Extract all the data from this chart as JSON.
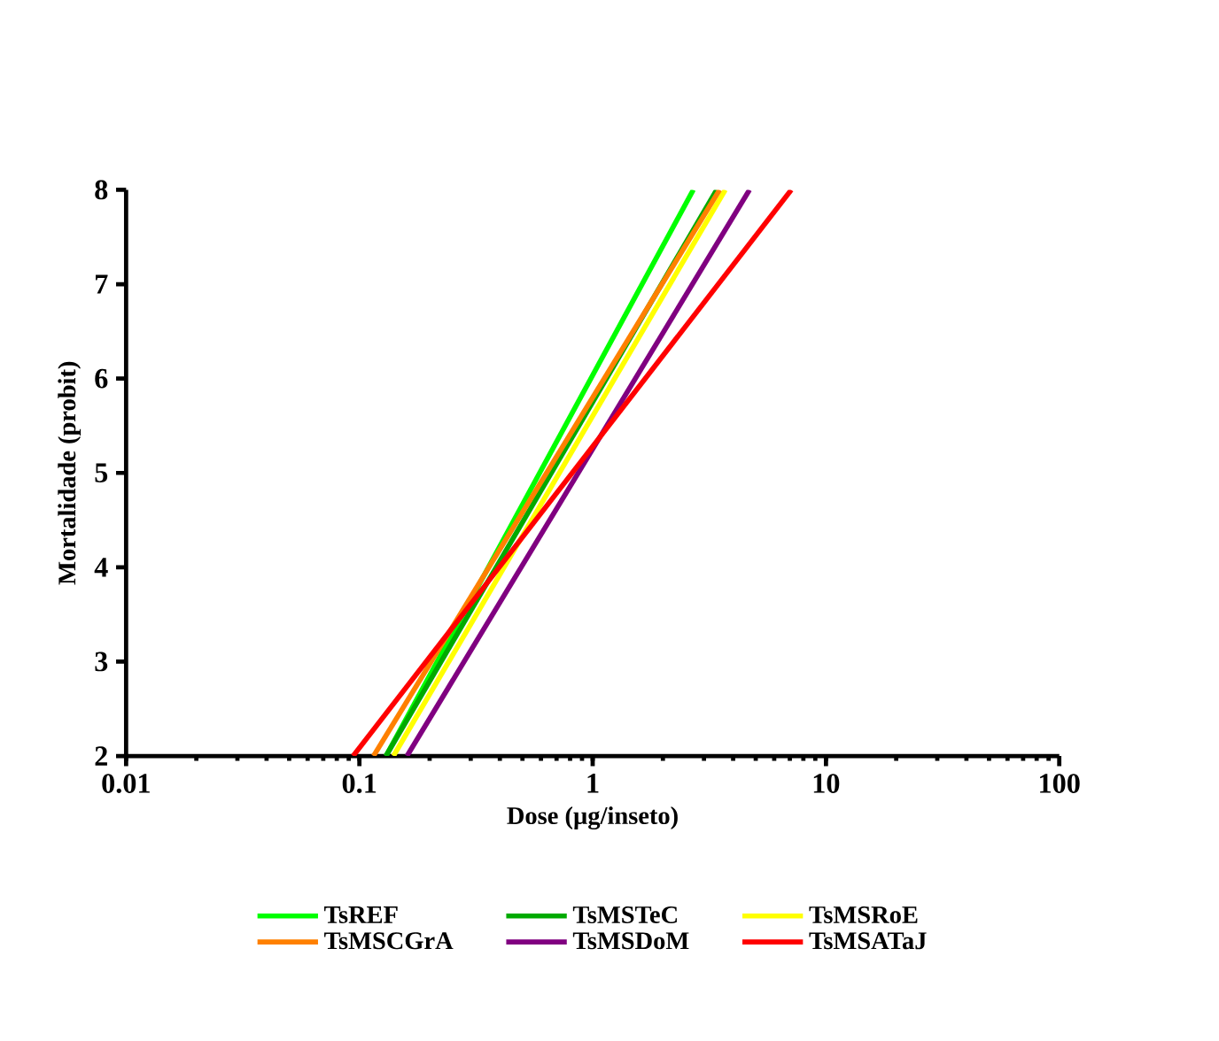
{
  "chart_data": {
    "type": "line",
    "xlabel": "Dose (µg/inseto)",
    "ylabel": "Mortalidade (probit)",
    "log": "x",
    "xlim": [
      0.01,
      100
    ],
    "ylim": [
      2,
      8
    ],
    "xticks": [
      0.01,
      0.1,
      1,
      10,
      100
    ],
    "yticks": [
      2,
      3,
      4,
      5,
      6,
      7,
      8
    ],
    "grid": false,
    "legend": "bottom",
    "marker": "none",
    "line_style": "solid",
    "series": [
      {
        "name": "TsREF",
        "color": "#00ff00",
        "x": [
          0.13,
          2.7
        ],
        "values": [
          2,
          8
        ]
      },
      {
        "name": "TsMSTeC",
        "color": "#00aa00",
        "x": [
          0.13,
          3.4
        ],
        "values": [
          2,
          8
        ]
      },
      {
        "name": "TsMSRoE",
        "color": "#ffff00",
        "x": [
          0.14,
          3.7
        ],
        "values": [
          2,
          8
        ]
      },
      {
        "name": "TsMSCGrA",
        "color": "#ff8000",
        "x": [
          0.115,
          3.5
        ],
        "values": [
          2,
          8
        ]
      },
      {
        "name": "TsMSDoM",
        "color": "#800080",
        "x": [
          0.16,
          4.7
        ],
        "values": [
          2,
          8
        ]
      },
      {
        "name": "TsMSATaJ",
        "color": "#ff0000",
        "x": [
          0.094,
          7.1
        ],
        "values": [
          2,
          8
        ]
      }
    ]
  }
}
